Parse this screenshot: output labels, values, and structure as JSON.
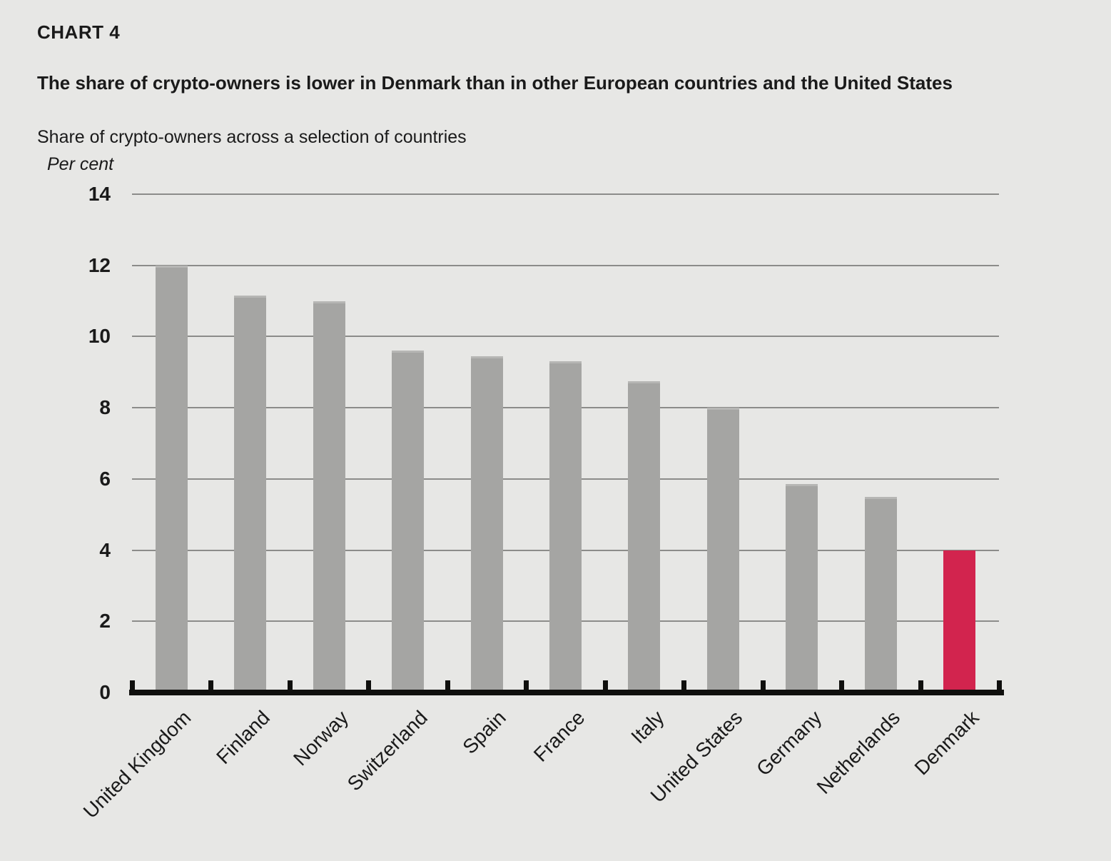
{
  "header": {
    "kicker": "CHART 4",
    "title": "The share of crypto-owners is lower in Denmark than in other European countries and the United States",
    "subtitle": "Share of crypto-owners across a selection of countries",
    "axis_unit_label": "Per cent"
  },
  "chart_data": {
    "type": "bar",
    "title": "Share of crypto-owners across a selection of countries",
    "ylabel": "Per cent",
    "xlabel": "",
    "categories": [
      "United Kingdom",
      "Finland",
      "Norway",
      "Switzerland",
      "Spain",
      "France",
      "Italy",
      "United States",
      "Germany",
      "Netherlands",
      "Denmark"
    ],
    "values": [
      12.0,
      11.15,
      11.0,
      9.6,
      9.45,
      9.3,
      8.75,
      8.0,
      5.85,
      5.5,
      4.0
    ],
    "highlight_category": "Denmark",
    "ylim": [
      0,
      14
    ],
    "yticks": [
      0,
      2,
      4,
      6,
      8,
      10,
      12,
      14
    ],
    "grid": "horizontal",
    "legend_position": "none",
    "colors": {
      "bar": "#a5a5a3",
      "bar_highlight": "#d2244e",
      "background": "#e7e7e5",
      "gridline": "#8c8c8a",
      "axis": "#0f0f0d",
      "text": "#1a1a1a"
    }
  }
}
